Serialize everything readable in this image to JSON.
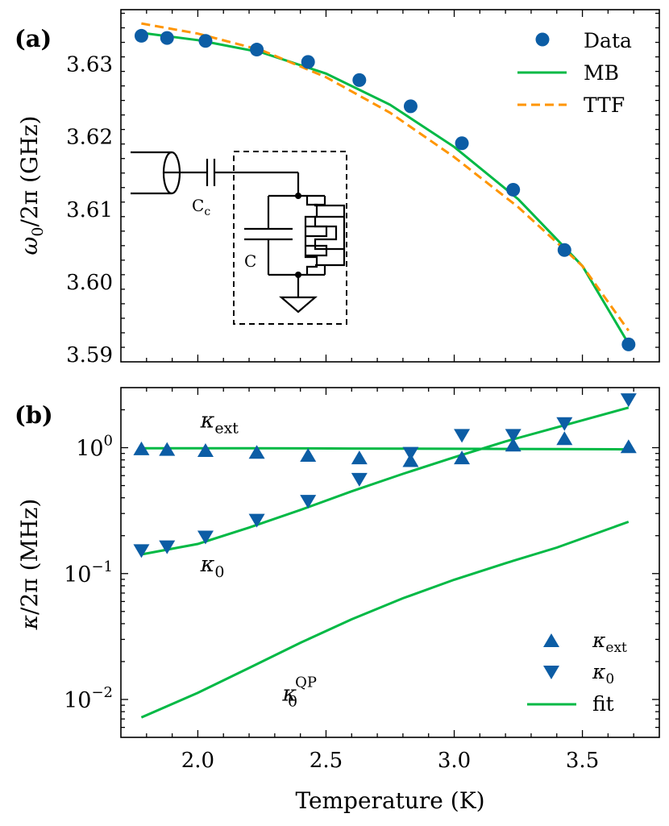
{
  "colors": {
    "data": "#0C5DA5",
    "fit": "#00B945",
    "ttf": "#FF9500",
    "axis": "#000000"
  },
  "chart_data": [
    {
      "panel_label": "(a)",
      "type": "line",
      "xlabel": "",
      "ylabel_sym": "ω",
      "ylabel_sub": "0",
      "ylabel_rest": "/2π (GHz)",
      "xlim": [
        1.7,
        3.8
      ],
      "ylim": [
        3.589,
        3.6375
      ],
      "y_ticks": [
        3.59,
        3.6,
        3.61,
        3.62,
        3.63
      ],
      "y_tick_labels": [
        "3.59",
        "3.60",
        "3.61",
        "3.62",
        "3.63"
      ],
      "legend": [
        {
          "key": "data",
          "label": "Data"
        },
        {
          "key": "mb",
          "label": "MB"
        },
        {
          "key": "ttf",
          "label": "TTF"
        }
      ],
      "series": [
        {
          "name": "Data",
          "kind": "scatter",
          "x": [
            1.78,
            1.88,
            2.03,
            2.23,
            2.43,
            2.63,
            2.83,
            3.03,
            3.23,
            3.43,
            3.68
          ],
          "y": [
            3.6339,
            3.6336,
            3.6332,
            3.632,
            3.6303,
            3.6278,
            3.6242,
            3.6191,
            3.6127,
            3.6044,
            3.5914
          ]
        },
        {
          "name": "MB",
          "kind": "line",
          "x": [
            1.78,
            2.0,
            2.25,
            2.5,
            2.75,
            3.0,
            3.25,
            3.5,
            3.68
          ],
          "y": [
            3.6343,
            3.6333,
            3.6316,
            3.6287,
            3.6244,
            3.6186,
            3.6114,
            3.6022,
            3.5915
          ]
        },
        {
          "name": "TTF",
          "kind": "dashed",
          "x": [
            1.78,
            2.0,
            2.25,
            2.5,
            2.75,
            3.0,
            3.25,
            3.5,
            3.68
          ],
          "y": [
            3.6356,
            3.6342,
            3.6319,
            3.6282,
            3.6233,
            3.6172,
            3.6103,
            3.6022,
            3.5933
          ]
        }
      ],
      "inset_labels": {
        "coupling_cap": "C",
        "coupling_cap_sub": "c",
        "cap": "C"
      }
    },
    {
      "panel_label": "(b)",
      "type": "line",
      "log_y": true,
      "xlabel": "Temperature (K)",
      "ylabel_sym": "κ",
      "ylabel_rest": "/2π (MHz)",
      "xlim": [
        1.7,
        3.8
      ],
      "ylim": [
        0.005,
        3.0
      ],
      "x_ticks": [
        2.0,
        2.5,
        3.0,
        3.5
      ],
      "x_tick_labels": [
        "2.0",
        "2.5",
        "3.0",
        "3.5"
      ],
      "y_ticks": [
        0.01,
        0.1,
        1
      ],
      "y_tick_base": "10",
      "y_tick_exps": [
        "−2",
        "−1",
        "0"
      ],
      "curve_labels": [
        {
          "sym": "κ",
          "sub": "ext",
          "sup": "",
          "x": 2.01,
          "y": 1.45
        },
        {
          "sym": "κ",
          "sub": "0",
          "sup": "",
          "x": 2.01,
          "y": 0.104
        },
        {
          "sym": "κ",
          "sub": "0",
          "sup": "QP",
          "x": 2.33,
          "y": 0.0098
        }
      ],
      "legend": [
        {
          "key": "kext",
          "sym": "κ",
          "sub": "ext"
        },
        {
          "key": "k0",
          "sym": "κ",
          "sub": "0"
        },
        {
          "key": "fit",
          "label": "fit"
        }
      ],
      "series": [
        {
          "name": "κext",
          "kind": "triangle-up",
          "x": [
            1.78,
            1.88,
            2.03,
            2.23,
            2.43,
            2.63,
            2.83,
            3.03,
            3.23,
            3.43,
            3.68
          ],
          "y": [
            0.98,
            0.97,
            0.95,
            0.92,
            0.87,
            0.83,
            0.79,
            0.83,
            1.05,
            1.18,
            1.02
          ]
        },
        {
          "name": "κ0",
          "kind": "triangle-down",
          "x": [
            1.78,
            1.88,
            2.03,
            2.23,
            2.43,
            2.63,
            2.83,
            3.03,
            3.23,
            3.43,
            3.68
          ],
          "y": [
            0.152,
            0.163,
            0.195,
            0.265,
            0.375,
            0.56,
            0.9,
            1.25,
            1.25,
            1.55,
            2.4
          ]
        },
        {
          "name": "κext fit",
          "kind": "line",
          "x": [
            1.78,
            2.2,
            2.6,
            3.0,
            3.4,
            3.68
          ],
          "y": [
            0.99,
            0.99,
            0.985,
            0.98,
            0.975,
            0.97
          ]
        },
        {
          "name": "κ0 fit",
          "kind": "line",
          "x": [
            1.78,
            2.0,
            2.2,
            2.4,
            2.6,
            2.8,
            3.0,
            3.2,
            3.4,
            3.68
          ],
          "y": [
            0.142,
            0.172,
            0.232,
            0.32,
            0.45,
            0.62,
            0.84,
            1.12,
            1.45,
            2.08
          ]
        },
        {
          "name": "κ0 QP fit",
          "kind": "line",
          "x": [
            1.78,
            2.0,
            2.2,
            2.4,
            2.6,
            2.8,
            3.0,
            3.2,
            3.4,
            3.68
          ],
          "y": [
            0.0072,
            0.0113,
            0.0178,
            0.0282,
            0.0433,
            0.0637,
            0.0893,
            0.1208,
            0.1608,
            0.258
          ]
        }
      ]
    }
  ]
}
